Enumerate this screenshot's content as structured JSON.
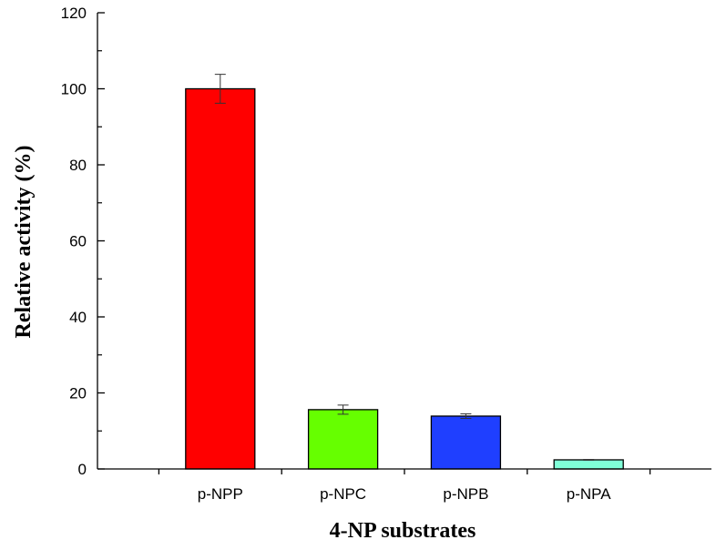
{
  "chart_data": {
    "type": "bar",
    "title": "",
    "xlabel": "4-NP substrates",
    "ylabel": "Relative activity (%)",
    "ylim": [
      0,
      120
    ],
    "yticks": [
      0,
      20,
      40,
      60,
      80,
      100,
      120
    ],
    "categories": [
      "p-NPP",
      "p-NPC",
      "p-NPB",
      "p-NPA"
    ],
    "values": [
      100,
      15.6,
      13.9,
      2.4
    ],
    "errors": [
      3.8,
      1.2,
      0.6,
      0.1
    ],
    "colors": [
      "#ff0000",
      "#66ff00",
      "#1f3fff",
      "#80ffd8"
    ],
    "grid": false,
    "legend": "none"
  }
}
